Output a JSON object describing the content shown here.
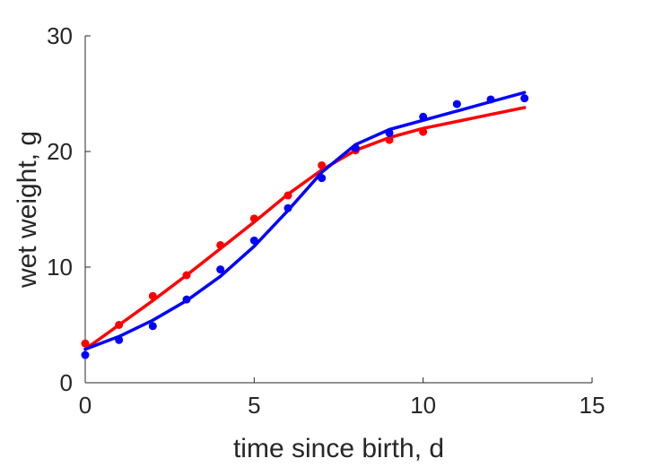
{
  "chart_data": {
    "type": "scatter",
    "title": "",
    "xlabel": "time since birth, d",
    "ylabel": "wet weight, g",
    "xlim": [
      0,
      15
    ],
    "ylim": [
      0,
      30
    ],
    "xticks": [
      "0",
      "5",
      "10",
      "15"
    ],
    "yticks": [
      "0",
      "10",
      "20",
      "30"
    ],
    "grid": false,
    "legend": "none",
    "series": [
      {
        "color": "#ff0000",
        "points": [
          [
            0,
            3.4
          ],
          [
            1,
            5.0
          ],
          [
            2,
            7.5
          ],
          [
            3,
            9.3
          ],
          [
            4,
            11.9
          ],
          [
            5,
            14.2
          ],
          [
            6,
            16.2
          ],
          [
            7,
            18.8
          ],
          [
            8,
            20.1
          ],
          [
            9,
            21.0
          ],
          [
            10,
            21.7
          ]
        ],
        "fit": [
          [
            0,
            2.9
          ],
          [
            1,
            5.0
          ],
          [
            2,
            7.1
          ],
          [
            3,
            9.3
          ],
          [
            4,
            11.6
          ],
          [
            5,
            13.9
          ],
          [
            6,
            16.3
          ],
          [
            7,
            18.4
          ],
          [
            8,
            20.1
          ],
          [
            9,
            21.2
          ],
          [
            10,
            22.0
          ],
          [
            11,
            22.6
          ],
          [
            12,
            23.2
          ],
          [
            13,
            23.8
          ]
        ]
      },
      {
        "color": "#0000ff",
        "points": [
          [
            0,
            2.4
          ],
          [
            1,
            3.7
          ],
          [
            2,
            4.9
          ],
          [
            3,
            7.2
          ],
          [
            4,
            9.8
          ],
          [
            5,
            12.3
          ],
          [
            6,
            15.1
          ],
          [
            7,
            17.7
          ],
          [
            8,
            20.3
          ],
          [
            9,
            21.6
          ],
          [
            10,
            23.0
          ],
          [
            11,
            24.1
          ],
          [
            12,
            24.5
          ],
          [
            13,
            24.6
          ]
        ],
        "fit": [
          [
            0,
            2.9
          ],
          [
            1,
            4.0
          ],
          [
            2,
            5.4
          ],
          [
            3,
            7.1
          ],
          [
            4,
            9.2
          ],
          [
            5,
            11.8
          ],
          [
            6,
            14.9
          ],
          [
            7,
            18.2
          ],
          [
            8,
            20.6
          ],
          [
            9,
            21.9
          ],
          [
            10,
            22.7
          ],
          [
            11,
            23.5
          ],
          [
            12,
            24.3
          ],
          [
            13,
            25.1
          ]
        ]
      }
    ]
  }
}
